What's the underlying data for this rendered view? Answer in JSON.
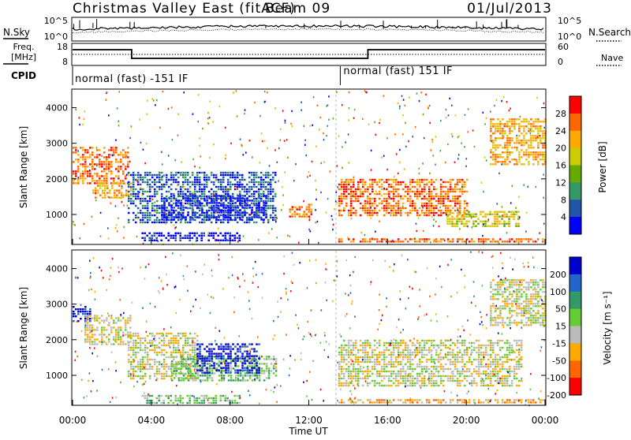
{
  "header": {
    "title": "Christmas Valley East (fitACF)",
    "beam": "Beam 09",
    "date": "01/Jul/2013"
  },
  "status_panels": {
    "nsky_label": "N.Sky",
    "nsearch_label": "N.Search",
    "freq_label_line1": "Freq.",
    "freq_label_line2": "[MHz]",
    "nave_label": "Nave",
    "cpid_label": "CPID",
    "noise_left_ticks": [
      "10^5",
      "10^0"
    ],
    "noise_right_ticks": [
      "10^5",
      "10^0"
    ],
    "freq_left_ticks": [
      "18",
      "8"
    ],
    "freq_right_ticks": [
      "60",
      "0"
    ],
    "cpid_segments": [
      {
        "label": "normal (fast) -151 IF",
        "start_hour": 0
      },
      {
        "label": "normal (fast) 151 IF",
        "start_hour": 13.6
      }
    ],
    "freq_steps": [
      {
        "start_hour": 0,
        "end_hour": 3,
        "level": "high"
      },
      {
        "start_hour": 3,
        "end_hour": 15,
        "level": "low"
      },
      {
        "start_hour": 15,
        "end_hour": 24,
        "level": "high"
      }
    ]
  },
  "x_axis": {
    "label": "Time UT",
    "ticks": [
      "00:00",
      "04:00",
      "08:00",
      "12:00",
      "16:00",
      "20:00",
      "00:00"
    ],
    "range_hours": [
      0,
      24
    ]
  },
  "chart_data": [
    {
      "type": "heatmap",
      "name": "power",
      "ylabel": "Slant Range [km]",
      "ylim": [
        180,
        4500
      ],
      "yticks": [
        1000,
        2000,
        3000,
        4000
      ],
      "colorbar_label": "Power [dB]",
      "colorbar_ticks": [
        "28",
        "24",
        "20",
        "16",
        "12",
        "8",
        "4"
      ],
      "colorbar_colors": [
        "#ff0000",
        "#ff6600",
        "#ffaa00",
        "#cccc00",
        "#66aa00",
        "#339966",
        "#2255aa",
        "#0000ff"
      ],
      "regions": [
        {
          "t0": 0.0,
          "t1": 2.8,
          "r0": 1900,
          "r1": 2900,
          "level": 1
        },
        {
          "t0": 1.0,
          "t1": 3.0,
          "r0": 1450,
          "r1": 1900,
          "level": 2
        },
        {
          "t0": 2.8,
          "t1": 10.3,
          "r0": 800,
          "r1": 2200,
          "level": 6
        },
        {
          "t0": 4.5,
          "t1": 9.8,
          "r0": 850,
          "r1": 1550,
          "level": 7
        },
        {
          "t0": 3.5,
          "t1": 8.5,
          "r0": 250,
          "r1": 500,
          "level": 7
        },
        {
          "t0": 11.0,
          "t1": 12.2,
          "r0": 950,
          "r1": 1300,
          "level": 1
        },
        {
          "t0": 13.5,
          "t1": 24.0,
          "r0": 250,
          "r1": 330,
          "level": 1
        },
        {
          "t0": 13.5,
          "t1": 20.0,
          "r0": 1000,
          "r1": 2000,
          "level": 1
        },
        {
          "t0": 19.0,
          "t1": 22.7,
          "r0": 700,
          "r1": 1100,
          "level": 3
        },
        {
          "t0": 21.2,
          "t1": 24.0,
          "r0": 2400,
          "r1": 3700,
          "level": 2
        }
      ]
    },
    {
      "type": "heatmap",
      "name": "velocity",
      "ylabel": "Slant Range [km]",
      "ylim": [
        180,
        4500
      ],
      "yticks": [
        1000,
        2000,
        3000,
        4000
      ],
      "colorbar_label": "Velocity [m s⁻¹]",
      "colorbar_ticks": [
        "200",
        "100",
        "50",
        "15",
        "-15",
        "-50",
        "-100",
        "-200"
      ],
      "colorbar_colors": [
        "#0000cc",
        "#2266cc",
        "#339966",
        "#66cc33",
        "#bbbbbb",
        "#ffaa00",
        "#ff6600",
        "#ff0000"
      ],
      "regions": [
        {
          "t0": 0.0,
          "t1": 0.9,
          "r0": 2500,
          "r1": 2950,
          "level": 0
        },
        {
          "t0": 0.6,
          "t1": 3.0,
          "r0": 1900,
          "r1": 2700,
          "level": 4
        },
        {
          "t0": 2.8,
          "t1": 6.3,
          "r0": 900,
          "r1": 2200,
          "level": 4
        },
        {
          "t0": 5.0,
          "t1": 10.3,
          "r0": 850,
          "r1": 1550,
          "level": 3
        },
        {
          "t0": 6.3,
          "t1": 9.5,
          "r0": 1100,
          "r1": 1900,
          "level": 0
        },
        {
          "t0": 3.5,
          "t1": 8.5,
          "r0": 250,
          "r1": 450,
          "level": 3
        },
        {
          "t0": 13.5,
          "t1": 24.0,
          "r0": 200,
          "r1": 330,
          "level": 5
        },
        {
          "t0": 13.5,
          "t1": 22.8,
          "r0": 700,
          "r1": 2000,
          "level": 4
        },
        {
          "t0": 21.2,
          "t1": 24.0,
          "r0": 2400,
          "r1": 3700,
          "level": 4
        }
      ]
    }
  ]
}
